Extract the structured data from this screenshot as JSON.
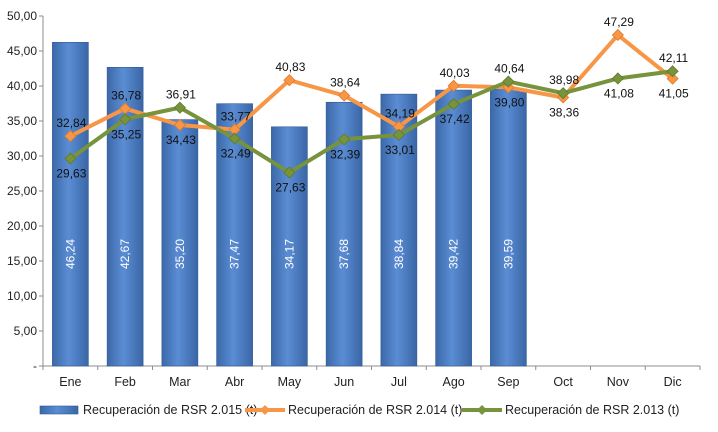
{
  "chart_data": {
    "type": "bar",
    "categories": [
      "Ene",
      "Feb",
      "Mar",
      "Abr",
      "May",
      "Jun",
      "Jul",
      "Ago",
      "Sep",
      "Oct",
      "Nov",
      "Dic"
    ],
    "ylim": [
      0,
      50
    ],
    "yticks": [
      0,
      5,
      10,
      15,
      20,
      25,
      30,
      35,
      40,
      45,
      50
    ],
    "ytick_labels": [
      "-",
      "5,00",
      "10,00",
      "15,00",
      "20,00",
      "25,00",
      "30,00",
      "35,00",
      "40,00",
      "45,00",
      "50,00"
    ],
    "grid": false,
    "legend_position": "bottom",
    "series": [
      {
        "name": "Recuperación de RSR 2.015 (t)",
        "kind": "bar",
        "color": "#4F81BD",
        "values": [
          46.24,
          42.67,
          35.2,
          37.47,
          34.17,
          37.68,
          38.84,
          39.42,
          39.59,
          null,
          null,
          null
        ],
        "labels": [
          "46,24",
          "42,67",
          "35,20",
          "37,47",
          "34,17",
          "37,68",
          "38,84",
          "39,42",
          "39,59",
          null,
          null,
          null
        ]
      },
      {
        "name": "Recuperación de RSR 2.014 (t)",
        "kind": "line",
        "color": "#F79646",
        "values": [
          32.84,
          36.78,
          34.43,
          33.77,
          40.83,
          38.64,
          34.19,
          40.03,
          39.8,
          38.36,
          47.29,
          41.05
        ],
        "labels": [
          "32,84",
          "36,78",
          "34,43",
          "33,77",
          "40,83",
          "38,64",
          "34,19",
          "40,03",
          "39,80",
          "38,36",
          "47,29",
          "41,05"
        ]
      },
      {
        "name": "Recuperación de RSR 2.013 (t)",
        "kind": "line",
        "color": "#77933C",
        "values": [
          29.63,
          35.25,
          36.91,
          32.49,
          27.63,
          32.39,
          33.01,
          37.42,
          40.64,
          38.98,
          41.08,
          42.11
        ],
        "labels": [
          "29,63",
          "35,25",
          "36,91",
          "32,49",
          "27,63",
          "32,39",
          "33,01",
          "37,42",
          "40,64",
          "38,98",
          "41,08",
          "42,11"
        ]
      }
    ]
  }
}
